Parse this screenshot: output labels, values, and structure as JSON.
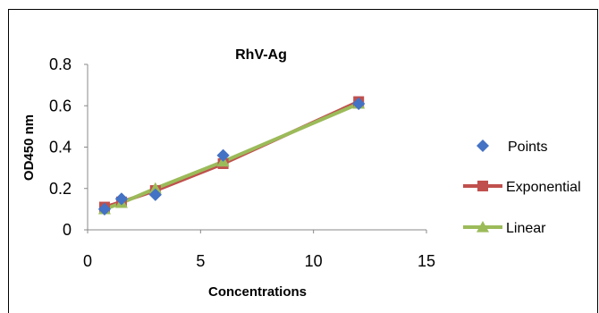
{
  "chart_data": {
    "type": "scatter",
    "title": "RhV-Ag",
    "xlabel": "Concentrations",
    "ylabel": "OD450 nm",
    "xlim": [
      0,
      15
    ],
    "ylim": [
      0,
      0.8
    ],
    "xticks": [
      "0",
      "5",
      "10",
      "15"
    ],
    "yticks": [
      "0",
      "0.2",
      "0.4",
      "0.6",
      "0.8"
    ],
    "grid": false,
    "legend_position": "right",
    "series": [
      {
        "name": "Points",
        "marker": "diamond",
        "line": false,
        "color": "#4472C4",
        "x": [
          0.75,
          1.5,
          3,
          6,
          12
        ],
        "y": [
          0.1,
          0.15,
          0.17,
          0.36,
          0.61
        ]
      },
      {
        "name": "Exponential",
        "marker": "square",
        "line": true,
        "color": "#C0504D",
        "x": [
          0.75,
          1.5,
          3,
          6,
          12
        ],
        "y": [
          0.11,
          0.135,
          0.19,
          0.32,
          0.62
        ]
      },
      {
        "name": "Linear",
        "marker": "triangle",
        "line": true,
        "color": "#9BBB59",
        "x": [
          0.75,
          1.5,
          3,
          6,
          12
        ],
        "y": [
          0.1,
          0.13,
          0.2,
          0.33,
          0.61
        ]
      }
    ]
  }
}
